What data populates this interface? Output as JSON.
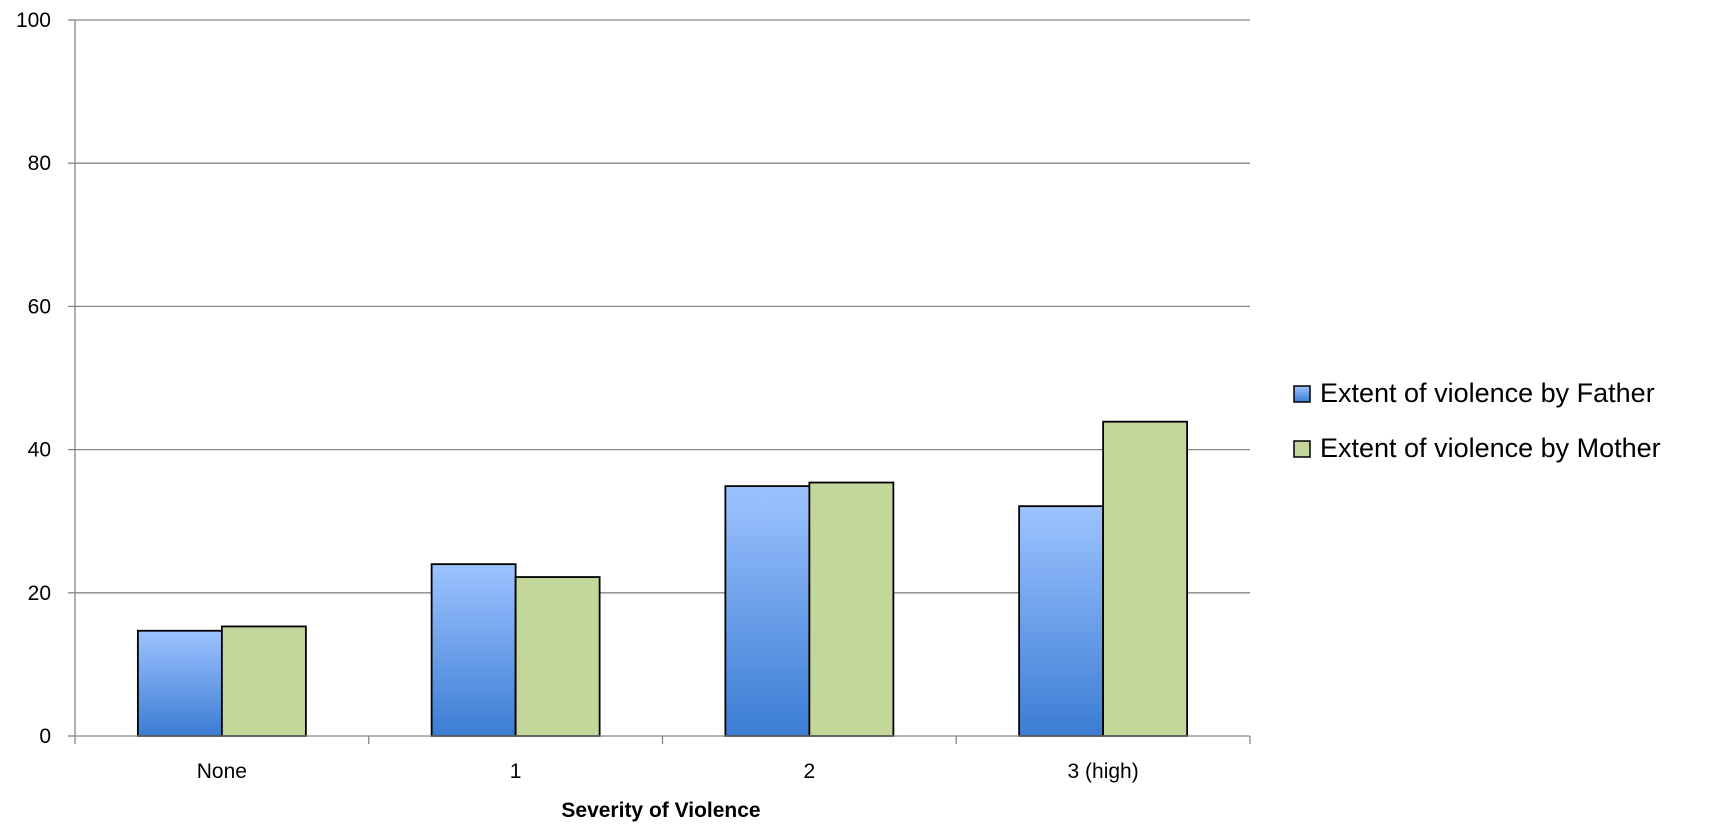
{
  "chart_data": {
    "type": "bar",
    "title": "",
    "xlabel": "Severity of Violence",
    "ylabel": "",
    "categories": [
      "None",
      "1",
      "2",
      "3 (high)"
    ],
    "series": [
      {
        "name": "Extent of violence by Father",
        "values": [
          14.7,
          24.0,
          34.9,
          32.1
        ],
        "color": "#4a86d6"
      },
      {
        "name": "Extent of violence by Mother",
        "values": [
          15.3,
          22.2,
          35.4,
          43.9
        ],
        "color": "#c4d79b"
      }
    ],
    "ylim": [
      0,
      100
    ],
    "yticks": [
      0,
      20,
      40,
      60,
      80,
      100
    ],
    "grid": true,
    "legend_position": "right",
    "colors": {
      "father_top": "#9dc3ff",
      "father_bottom": "#3b7dd3",
      "mother_fill": "#c4d79b",
      "bar_stroke": "#000000",
      "grid": "#868686",
      "axis": "#868686"
    }
  }
}
